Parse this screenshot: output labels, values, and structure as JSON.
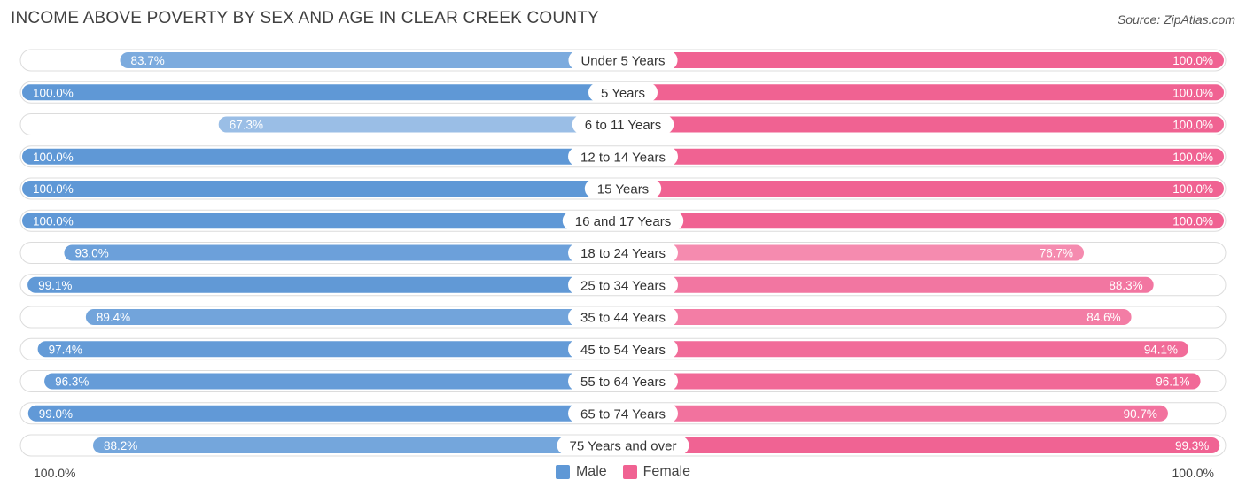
{
  "header": {
    "title": "INCOME ABOVE POVERTY BY SEX AND AGE IN CLEAR CREEK COUNTY",
    "source": "Source: ZipAtlas.com"
  },
  "axis": {
    "left_label": "100.0%",
    "right_label": "100.0%"
  },
  "legend": {
    "male_label": "Male",
    "female_label": "Female"
  },
  "colors": {
    "male_full": "#5f98d6",
    "male_light": "#a7c6ea",
    "female_full": "#f06292",
    "female_light": "#f8a8c4",
    "track": "#eeeeee"
  },
  "chart_data": {
    "type": "bar",
    "orientation": "horizontal-diverging",
    "title": "INCOME ABOVE POVERTY BY SEX AND AGE IN CLEAR CREEK COUNTY",
    "xlim": [
      0,
      100
    ],
    "categories": [
      "Under 5 Years",
      "5 Years",
      "6 to 11 Years",
      "12 to 14 Years",
      "15 Years",
      "16 and 17 Years",
      "18 to 24 Years",
      "25 to 34 Years",
      "35 to 44 Years",
      "45 to 54 Years",
      "55 to 64 Years",
      "65 to 74 Years",
      "75 Years and over"
    ],
    "series": [
      {
        "name": "Male",
        "values": [
          83.7,
          100.0,
          67.3,
          100.0,
          100.0,
          100.0,
          93.0,
          99.1,
          89.4,
          97.4,
          96.3,
          99.0,
          88.2
        ],
        "labels": [
          "83.7%",
          "100.0%",
          "67.3%",
          "100.0%",
          "100.0%",
          "100.0%",
          "93.0%",
          "99.1%",
          "89.4%",
          "97.4%",
          "96.3%",
          "99.0%",
          "88.2%"
        ]
      },
      {
        "name": "Female",
        "values": [
          100.0,
          100.0,
          100.0,
          100.0,
          100.0,
          100.0,
          76.7,
          88.3,
          84.6,
          94.1,
          96.1,
          90.7,
          99.3
        ],
        "labels": [
          "100.0%",
          "100.0%",
          "100.0%",
          "100.0%",
          "100.0%",
          "100.0%",
          "76.7%",
          "88.3%",
          "84.6%",
          "94.1%",
          "96.1%",
          "90.7%",
          "99.3%"
        ]
      }
    ]
  }
}
